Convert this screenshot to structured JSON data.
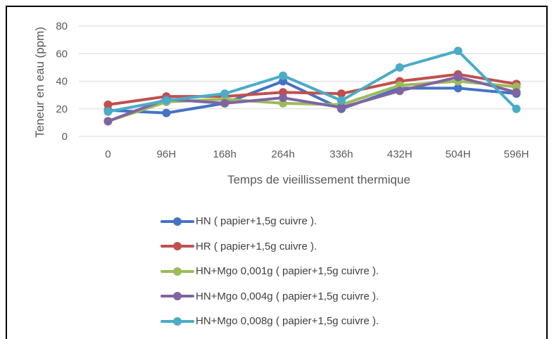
{
  "chart_data": {
    "type": "line",
    "xlabel": "Temps de vieillissement thermique",
    "ylabel": "Teneur en eau (ppm)",
    "ylim": [
      0,
      80
    ],
    "yticks": [
      "0",
      "20",
      "40",
      "60",
      "80"
    ],
    "grid": true,
    "legend_position": "bottom",
    "categories": [
      "0",
      "96H",
      "168h",
      "264h",
      "336h",
      "432H",
      "504H",
      "596H"
    ],
    "series": [
      {
        "name": "HN ( papier+1,5g cuivre ).",
        "color": "#4472C4",
        "values": [
          19,
          17,
          24,
          40,
          20,
          35,
          35,
          31
        ]
      },
      {
        "name": "HR ( papier+1,5g cuivre ).",
        "color": "#C0504D",
        "values": [
          23,
          29,
          29,
          32,
          31,
          40,
          45,
          38
        ]
      },
      {
        "name": "HN+Mgo 0,001g ( papier+1,5g cuivre ).",
        "color": "#9BBB59",
        "values": [
          11,
          25,
          27,
          24,
          23,
          37,
          40,
          36
        ]
      },
      {
        "name": "HN+Mgo 0,004g ( papier+1,5g cuivre ).",
        "color": "#8064A2",
        "values": [
          11,
          27,
          24,
          28,
          21,
          33,
          43,
          32
        ]
      },
      {
        "name": "HN+Mgo 0,008g ( papier+1,5g cuivre ).",
        "color": "#4BACC6",
        "values": [
          18,
          26,
          31,
          44,
          26,
          50,
          62,
          20
        ]
      }
    ]
  }
}
